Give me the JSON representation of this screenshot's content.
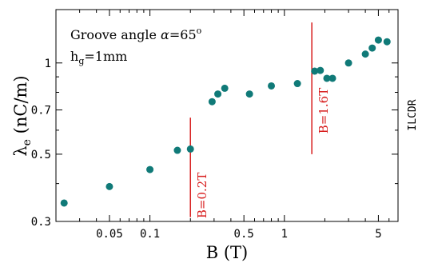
{
  "chart_data": {
    "type": "scatter",
    "x_scale": "log",
    "y_scale": "log",
    "xlim": [
      0.02,
      7
    ],
    "ylim": [
      0.3,
      1.5
    ],
    "xlabel": "B (T)",
    "ylabel_symbol": "λ",
    "ylabel_sub": "e",
    "ylabel_unit": " (nC/m)",
    "x_ticks": [
      {
        "value": 0.05,
        "label": "0.05"
      },
      {
        "value": 0.1,
        "label": "0.1"
      },
      {
        "value": 0.5,
        "label": "0.5"
      },
      {
        "value": 1,
        "label": "1"
      },
      {
        "value": 5,
        "label": "5"
      }
    ],
    "x_minor_ticks": [
      0.03,
      0.04,
      0.06,
      0.07,
      0.08,
      0.09,
      0.2,
      0.3,
      0.4,
      0.6,
      0.7,
      0.8,
      0.9,
      2,
      3,
      4,
      6,
      7
    ],
    "y_ticks": [
      {
        "value": 0.3,
        "label": "0.3"
      },
      {
        "value": 0.5,
        "label": "0.5"
      },
      {
        "value": 0.7,
        "label": "0.7"
      },
      {
        "value": 1,
        "label": "1"
      }
    ],
    "y_minor_ticks": [
      0.4,
      0.6,
      0.8,
      0.9
    ],
    "marker_color": "#107a78",
    "line_color": "#d81e1e",
    "points": [
      {
        "x": 0.023,
        "y": 0.345
      },
      {
        "x": 0.05,
        "y": 0.391
      },
      {
        "x": 0.1,
        "y": 0.445
      },
      {
        "x": 0.16,
        "y": 0.515
      },
      {
        "x": 0.2,
        "y": 0.52
      },
      {
        "x": 0.29,
        "y": 0.745
      },
      {
        "x": 0.32,
        "y": 0.79
      },
      {
        "x": 0.36,
        "y": 0.825
      },
      {
        "x": 0.55,
        "y": 0.79
      },
      {
        "x": 0.8,
        "y": 0.84
      },
      {
        "x": 1.25,
        "y": 0.855
      },
      {
        "x": 1.68,
        "y": 0.94
      },
      {
        "x": 1.85,
        "y": 0.945
      },
      {
        "x": 2.07,
        "y": 0.89
      },
      {
        "x": 2.28,
        "y": 0.89
      },
      {
        "x": 3.0,
        "y": 1.0
      },
      {
        "x": 4.0,
        "y": 1.07
      },
      {
        "x": 4.5,
        "y": 1.12
      },
      {
        "x": 5.0,
        "y": 1.19
      },
      {
        "x": 5.8,
        "y": 1.175
      }
    ],
    "markers": [
      {
        "x": 0.2,
        "y_from": 0.31,
        "y_to": 0.66,
        "label": "B=0.2T"
      },
      {
        "x": 1.6,
        "y_from": 0.5,
        "y_to": 1.36,
        "label": "B=1.6T"
      }
    ],
    "annotation_title_prefix": "Groove angle ",
    "annotation_alpha": "α",
    "annotation_eq": "=65",
    "annotation_degree": "o",
    "annotation_h": "h",
    "annotation_h_sub": "g",
    "annotation_h_value": "=1mm"
  },
  "side_label": "ILCDR"
}
